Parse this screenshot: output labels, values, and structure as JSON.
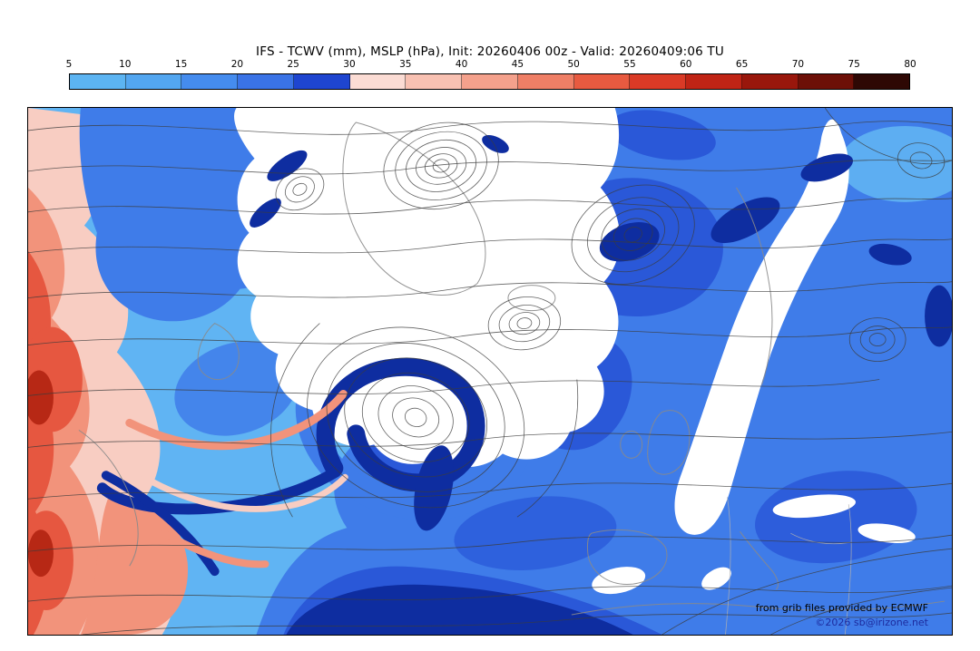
{
  "title": "IFS - TCWV (mm), MSLP (hPa), Init: 20260406 00z - Valid: 20260409:06 TU",
  "colorbar": {
    "ticks": [
      "5",
      "10",
      "15",
      "20",
      "25",
      "30",
      "35",
      "40",
      "45",
      "50",
      "55",
      "60",
      "65",
      "70",
      "75",
      "80"
    ],
    "colors": [
      "#5cb4f2",
      "#53a6f0",
      "#458cee",
      "#3a73e6",
      "#1e45d0",
      "#fbdcd4",
      "#f8c1b2",
      "#f4a18c",
      "#ef7f66",
      "#e85a40",
      "#da3a26",
      "#c02415",
      "#99170c",
      "#6d1007",
      "#2e0804"
    ]
  },
  "map": {
    "credits": {
      "source": "from grib files provided by ECMWF",
      "copyright": "©2026 sb@irizone.net"
    }
  },
  "map_colors": {
    "base": "#60b4f3",
    "mid": "#3f7ce9",
    "deep": "#2a58d8",
    "navy": "#0e2da0",
    "pink": "#f8cdc2",
    "salmon": "#f2937b",
    "red": "#e65740",
    "darkred": "#b72815",
    "contour": "#3c3c3c",
    "coast": "#8a8a8a"
  },
  "chart_data": {
    "type": "heatmap",
    "title": "IFS - TCWV (mm), MSLP (hPa), Init: 20260406 00z - Valid: 20260409:06 TU",
    "model": "IFS",
    "shaded_variable": "TCWV (mm)",
    "contour_variable": "MSLP (hPa)",
    "init_time": "20260406 00z",
    "valid_time": "20260409:06 TU",
    "colorbar": {
      "unit": "mm",
      "min": 5,
      "max": 80,
      "tick_step": 5,
      "ticks": [
        5,
        10,
        15,
        20,
        25,
        30,
        35,
        40,
        45,
        50,
        55,
        60,
        65,
        70,
        75,
        80
      ]
    },
    "legend_position": "top",
    "credit": "from grib files provided by ECMWF / ©2026 sb@irizone.net"
  }
}
